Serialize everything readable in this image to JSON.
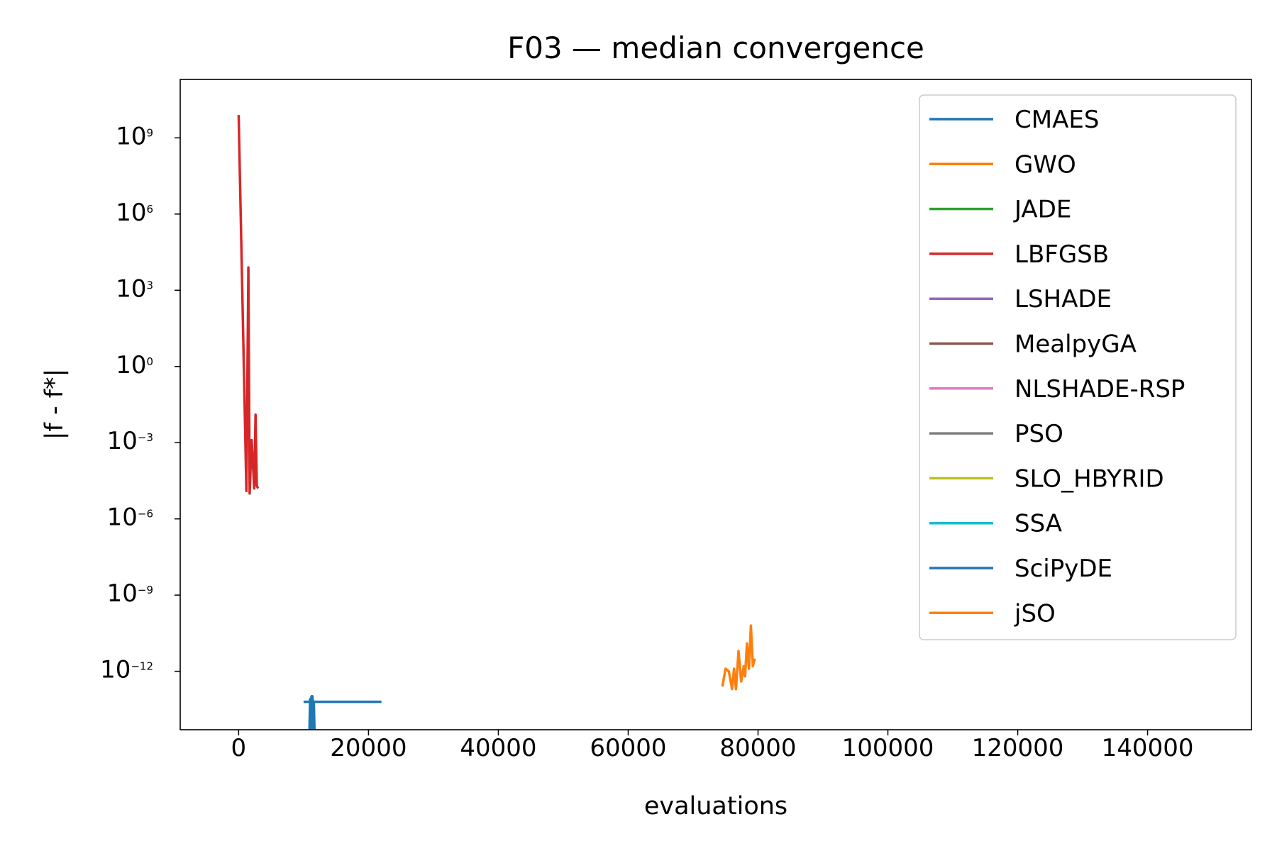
{
  "chart_data": {
    "type": "line",
    "title": "F03 — median convergence",
    "xlabel": "evaluations",
    "ylabel": "|f - f*|",
    "xscale": "linear",
    "yscale": "log",
    "xlim": [
      -9000,
      156000
    ],
    "ylim_log10": [
      -14.3,
      11.3
    ],
    "xticks": [
      0,
      20000,
      40000,
      60000,
      80000,
      100000,
      120000,
      140000
    ],
    "xtick_labels": [
      "0",
      "20000",
      "40000",
      "60000",
      "80000",
      "100000",
      "120000",
      "140000"
    ],
    "yticks_exp": [
      9,
      6,
      3,
      0,
      -3,
      -6,
      -9,
      -12
    ],
    "ytick_labels": [
      "10",
      "10",
      "10",
      "10",
      "10",
      "10",
      "10",
      "10"
    ],
    "ytick_exponents": [
      "9",
      "6",
      "3",
      "0",
      "−3",
      "−6",
      "−9",
      "−12"
    ],
    "legend_position": "upper right",
    "grid": false,
    "series": [
      {
        "name": "CMAES",
        "color": "#1f77b4",
        "x": [
          10000,
          22000
        ],
        "y_log10": [
          -13.2,
          -13.2
        ]
      },
      {
        "name": "GWO",
        "color": "#ff7f0e",
        "x": [],
        "y_log10": []
      },
      {
        "name": "JADE",
        "color": "#2ca02c",
        "x": [],
        "y_log10": []
      },
      {
        "name": "LBFGSB",
        "color": "#d62728",
        "x": [
          0,
          1200,
          1500,
          1700,
          2000,
          2400,
          2600,
          2800,
          3000
        ],
        "y_log10": [
          9.9,
          -4.9,
          3.9,
          -5.0,
          -2.9,
          -4.8,
          -1.9,
          -4.7,
          -4.8
        ]
      },
      {
        "name": "LSHADE",
        "color": "#9467bd",
        "x": [],
        "y_log10": []
      },
      {
        "name": "MealpyGA",
        "color": "#8c564b",
        "x": [],
        "y_log10": []
      },
      {
        "name": "NLSHADE-RSP",
        "color": "#e377c2",
        "x": [],
        "y_log10": []
      },
      {
        "name": "PSO",
        "color": "#7f7f7f",
        "x": [],
        "y_log10": []
      },
      {
        "name": "SLO_HBYRID",
        "color": "#bcbd22",
        "x": [],
        "y_log10": []
      },
      {
        "name": "SSA",
        "color": "#17becf",
        "x": [],
        "y_log10": []
      },
      {
        "name": "SciPyDE",
        "color": "#1f77b4",
        "x": [
          11000,
          11100,
          11200,
          11300,
          11400,
          11500,
          11600,
          11700
        ],
        "y_log10": [
          -14.3,
          -13.1,
          -14.3,
          -13.0,
          -14.3,
          -13.2,
          -14.3,
          -14.3
        ]
      },
      {
        "name": "jSO",
        "color": "#ff7f0e",
        "x": [
          74500,
          75000,
          75500,
          76000,
          76300,
          76600,
          77000,
          77400,
          77800,
          78000,
          78300,
          78600,
          78900,
          79200,
          79500
        ],
        "y_log10": [
          -12.6,
          -11.9,
          -12.0,
          -12.7,
          -11.9,
          -12.7,
          -11.2,
          -12.4,
          -11.8,
          -12.2,
          -10.9,
          -11.9,
          -10.2,
          -11.8,
          -11.5
        ]
      }
    ]
  }
}
